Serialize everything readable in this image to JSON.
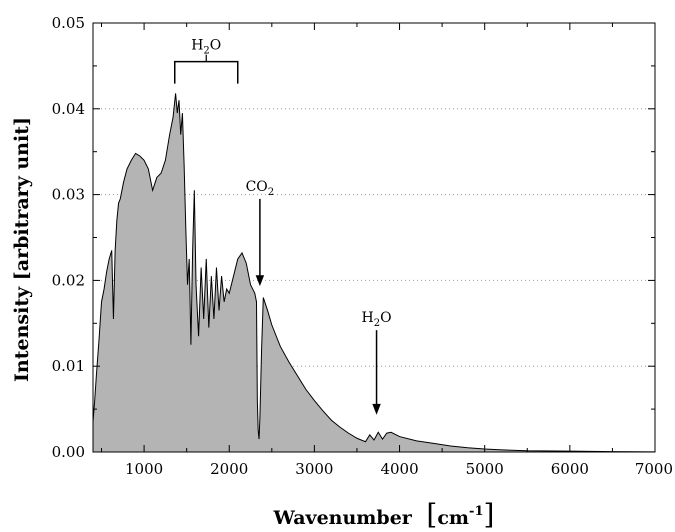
{
  "chart_data": {
    "type": "area",
    "title": "",
    "xlabel": "Wavenumber",
    "xlabel_unit_base": "cm",
    "xlabel_unit_exp": "-1",
    "ylabel": "Intensity [arbitrary unit]",
    "xlim": [
      400,
      7000
    ],
    "ylim": [
      0,
      0.05
    ],
    "x_ticks": [
      1000,
      2000,
      3000,
      4000,
      5000,
      6000,
      7000
    ],
    "x_tick_labels": [
      "1000",
      "2000",
      "3000",
      "4000",
      "5000",
      "6000",
      "7000"
    ],
    "y_ticks": [
      0,
      0.01,
      0.02,
      0.03,
      0.04,
      0.05
    ],
    "y_tick_labels": [
      "0.00",
      "0.01",
      "0.02",
      "0.03",
      "0.04",
      "0.05"
    ],
    "grid": {
      "horizontal_dotted": true,
      "vertical": false
    },
    "fill_color": "#b4b4b4",
    "line_color": "#000000",
    "series": [
      {
        "x": [
          400,
          420,
          440,
          470,
          500,
          530,
          560,
          590,
          620,
          640,
          660,
          680,
          700,
          720,
          760,
          800,
          850,
          900,
          950,
          1000,
          1050,
          1100,
          1150,
          1200,
          1250,
          1300,
          1340,
          1370,
          1390,
          1410,
          1430,
          1450,
          1470,
          1490,
          1510,
          1530,
          1550,
          1570,
          1590,
          1610,
          1640,
          1670,
          1700,
          1730,
          1760,
          1790,
          1820,
          1850,
          1880,
          1910,
          1940,
          1970,
          2000,
          2050,
          2100,
          2150,
          2200,
          2250,
          2300,
          2320,
          2330,
          2340,
          2350,
          2360,
          2380,
          2400,
          2450,
          2500,
          2600,
          2700,
          2800,
          2900,
          3000,
          3100,
          3200,
          3300,
          3400,
          3500,
          3600,
          3650,
          3700,
          3750,
          3800,
          3850,
          3900,
          4000,
          4200,
          4400,
          4600,
          4800,
          5000,
          5200,
          5500,
          6000,
          6500,
          7000
        ],
        "y": [
          0.0035,
          0.006,
          0.009,
          0.013,
          0.0175,
          0.019,
          0.021,
          0.0225,
          0.0235,
          0.0155,
          0.0235,
          0.027,
          0.029,
          0.0295,
          0.0315,
          0.033,
          0.034,
          0.0348,
          0.0345,
          0.034,
          0.033,
          0.0305,
          0.032,
          0.0325,
          0.034,
          0.037,
          0.039,
          0.0418,
          0.0395,
          0.041,
          0.037,
          0.0395,
          0.0335,
          0.026,
          0.0195,
          0.0225,
          0.0125,
          0.0235,
          0.0305,
          0.0195,
          0.0135,
          0.0215,
          0.0155,
          0.0225,
          0.0145,
          0.0205,
          0.0155,
          0.0215,
          0.0165,
          0.0205,
          0.0175,
          0.019,
          0.0185,
          0.0205,
          0.0225,
          0.0232,
          0.022,
          0.0195,
          0.0185,
          0.0175,
          0.006,
          0.0025,
          0.0015,
          0.004,
          0.012,
          0.018,
          0.0165,
          0.0148,
          0.0123,
          0.0105,
          0.0089,
          0.0073,
          0.006,
          0.0048,
          0.0037,
          0.0029,
          0.0022,
          0.0016,
          0.0012,
          0.002,
          0.0014,
          0.0023,
          0.0015,
          0.0022,
          0.0023,
          0.0018,
          0.0013,
          0.001,
          0.0007,
          0.0005,
          0.00035,
          0.00025,
          0.00015,
          0.0001,
          5e-05,
          2e-05
        ]
      }
    ],
    "annotations": [
      {
        "base": "H",
        "sub": "2",
        "rest": "O",
        "type": "bracket",
        "x_start": 1360,
        "x_end": 2100,
        "y": 0.0455
      },
      {
        "base": "CO",
        "sub": "2",
        "rest": "",
        "type": "arrow",
        "x": 2360,
        "y_from": 0.0295,
        "y_to": 0.0195
      },
      {
        "base": "H",
        "sub": "2",
        "rest": "O",
        "type": "arrow",
        "x": 3730,
        "y_from": 0.0142,
        "y_to": 0.0045
      }
    ]
  }
}
